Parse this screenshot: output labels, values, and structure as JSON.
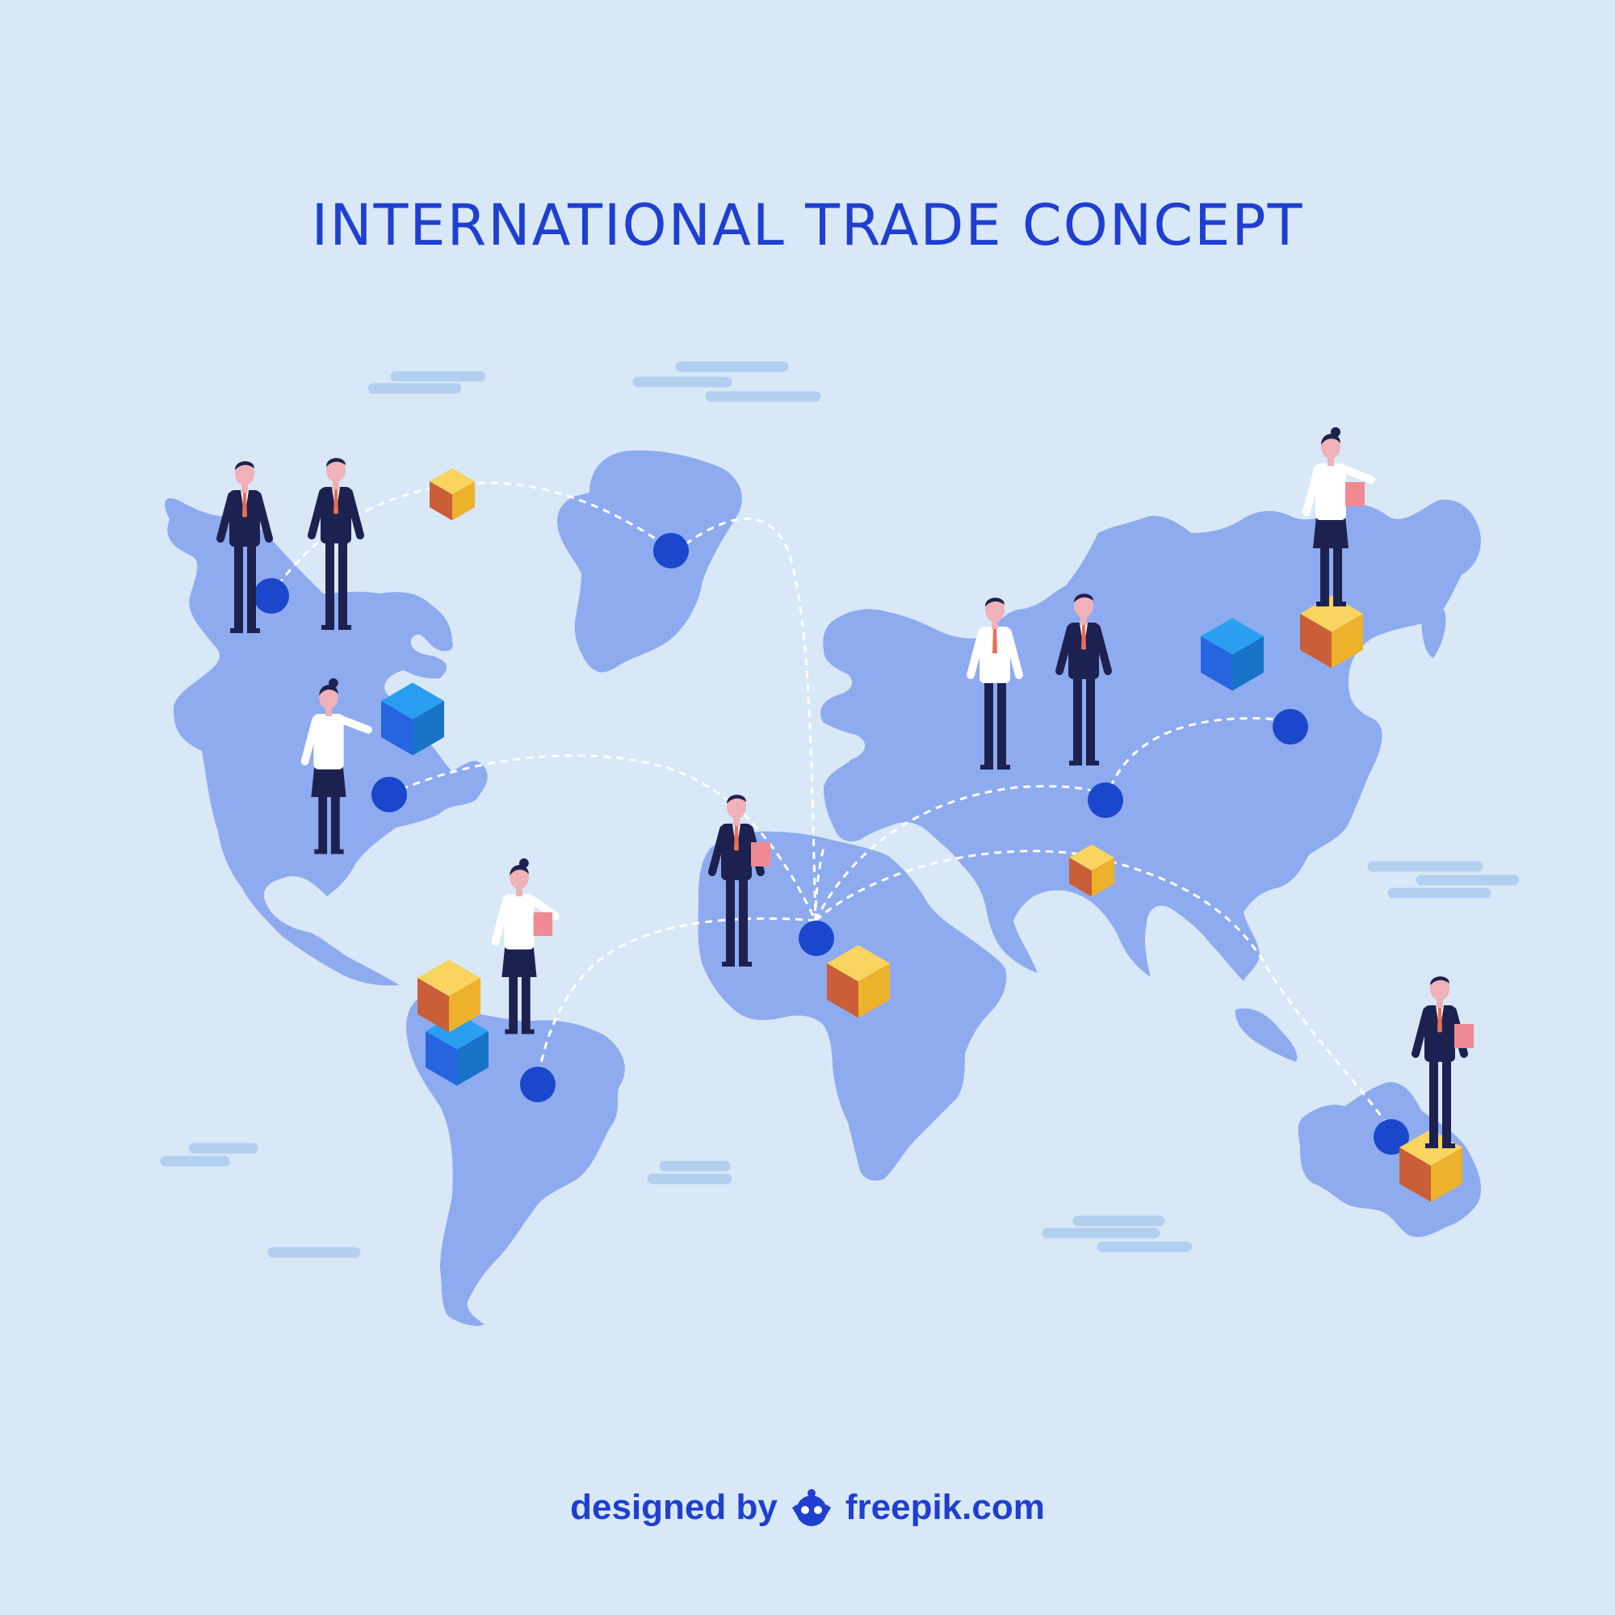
{
  "title": "INTERNATIONAL TRADE CONCEPT",
  "credit": {
    "prefix": "designed by",
    "brand": "freepik.com",
    "logo_icon": "freepik-logo-icon"
  },
  "colors": {
    "background": "#d8e8f7",
    "continent": "#8eabef",
    "cloud": "#b3cff0",
    "title": "#1f3fd0",
    "node": "#1b47cc",
    "route": "#ffffff",
    "suit": "#1d2150",
    "shirt": "#ffffff",
    "skin": "#f0b1b8",
    "tie": "#e86f59",
    "folder": "#ef8a92",
    "box_yellow_top": "#f9d45f",
    "box_yellow_side": "#ecb22b",
    "box_orange_side": "#c95e39",
    "box_blue_top": "#2a9ff2",
    "box_blue_side": "#2664e0",
    "box_blue_front": "#1873c8"
  },
  "scene": {
    "icons": [
      "world-map-icon",
      "trade-route-icon",
      "cargo-box-icon",
      "businessman-icon",
      "businesswoman-icon",
      "handshake-icon",
      "cloud-icon"
    ]
  }
}
